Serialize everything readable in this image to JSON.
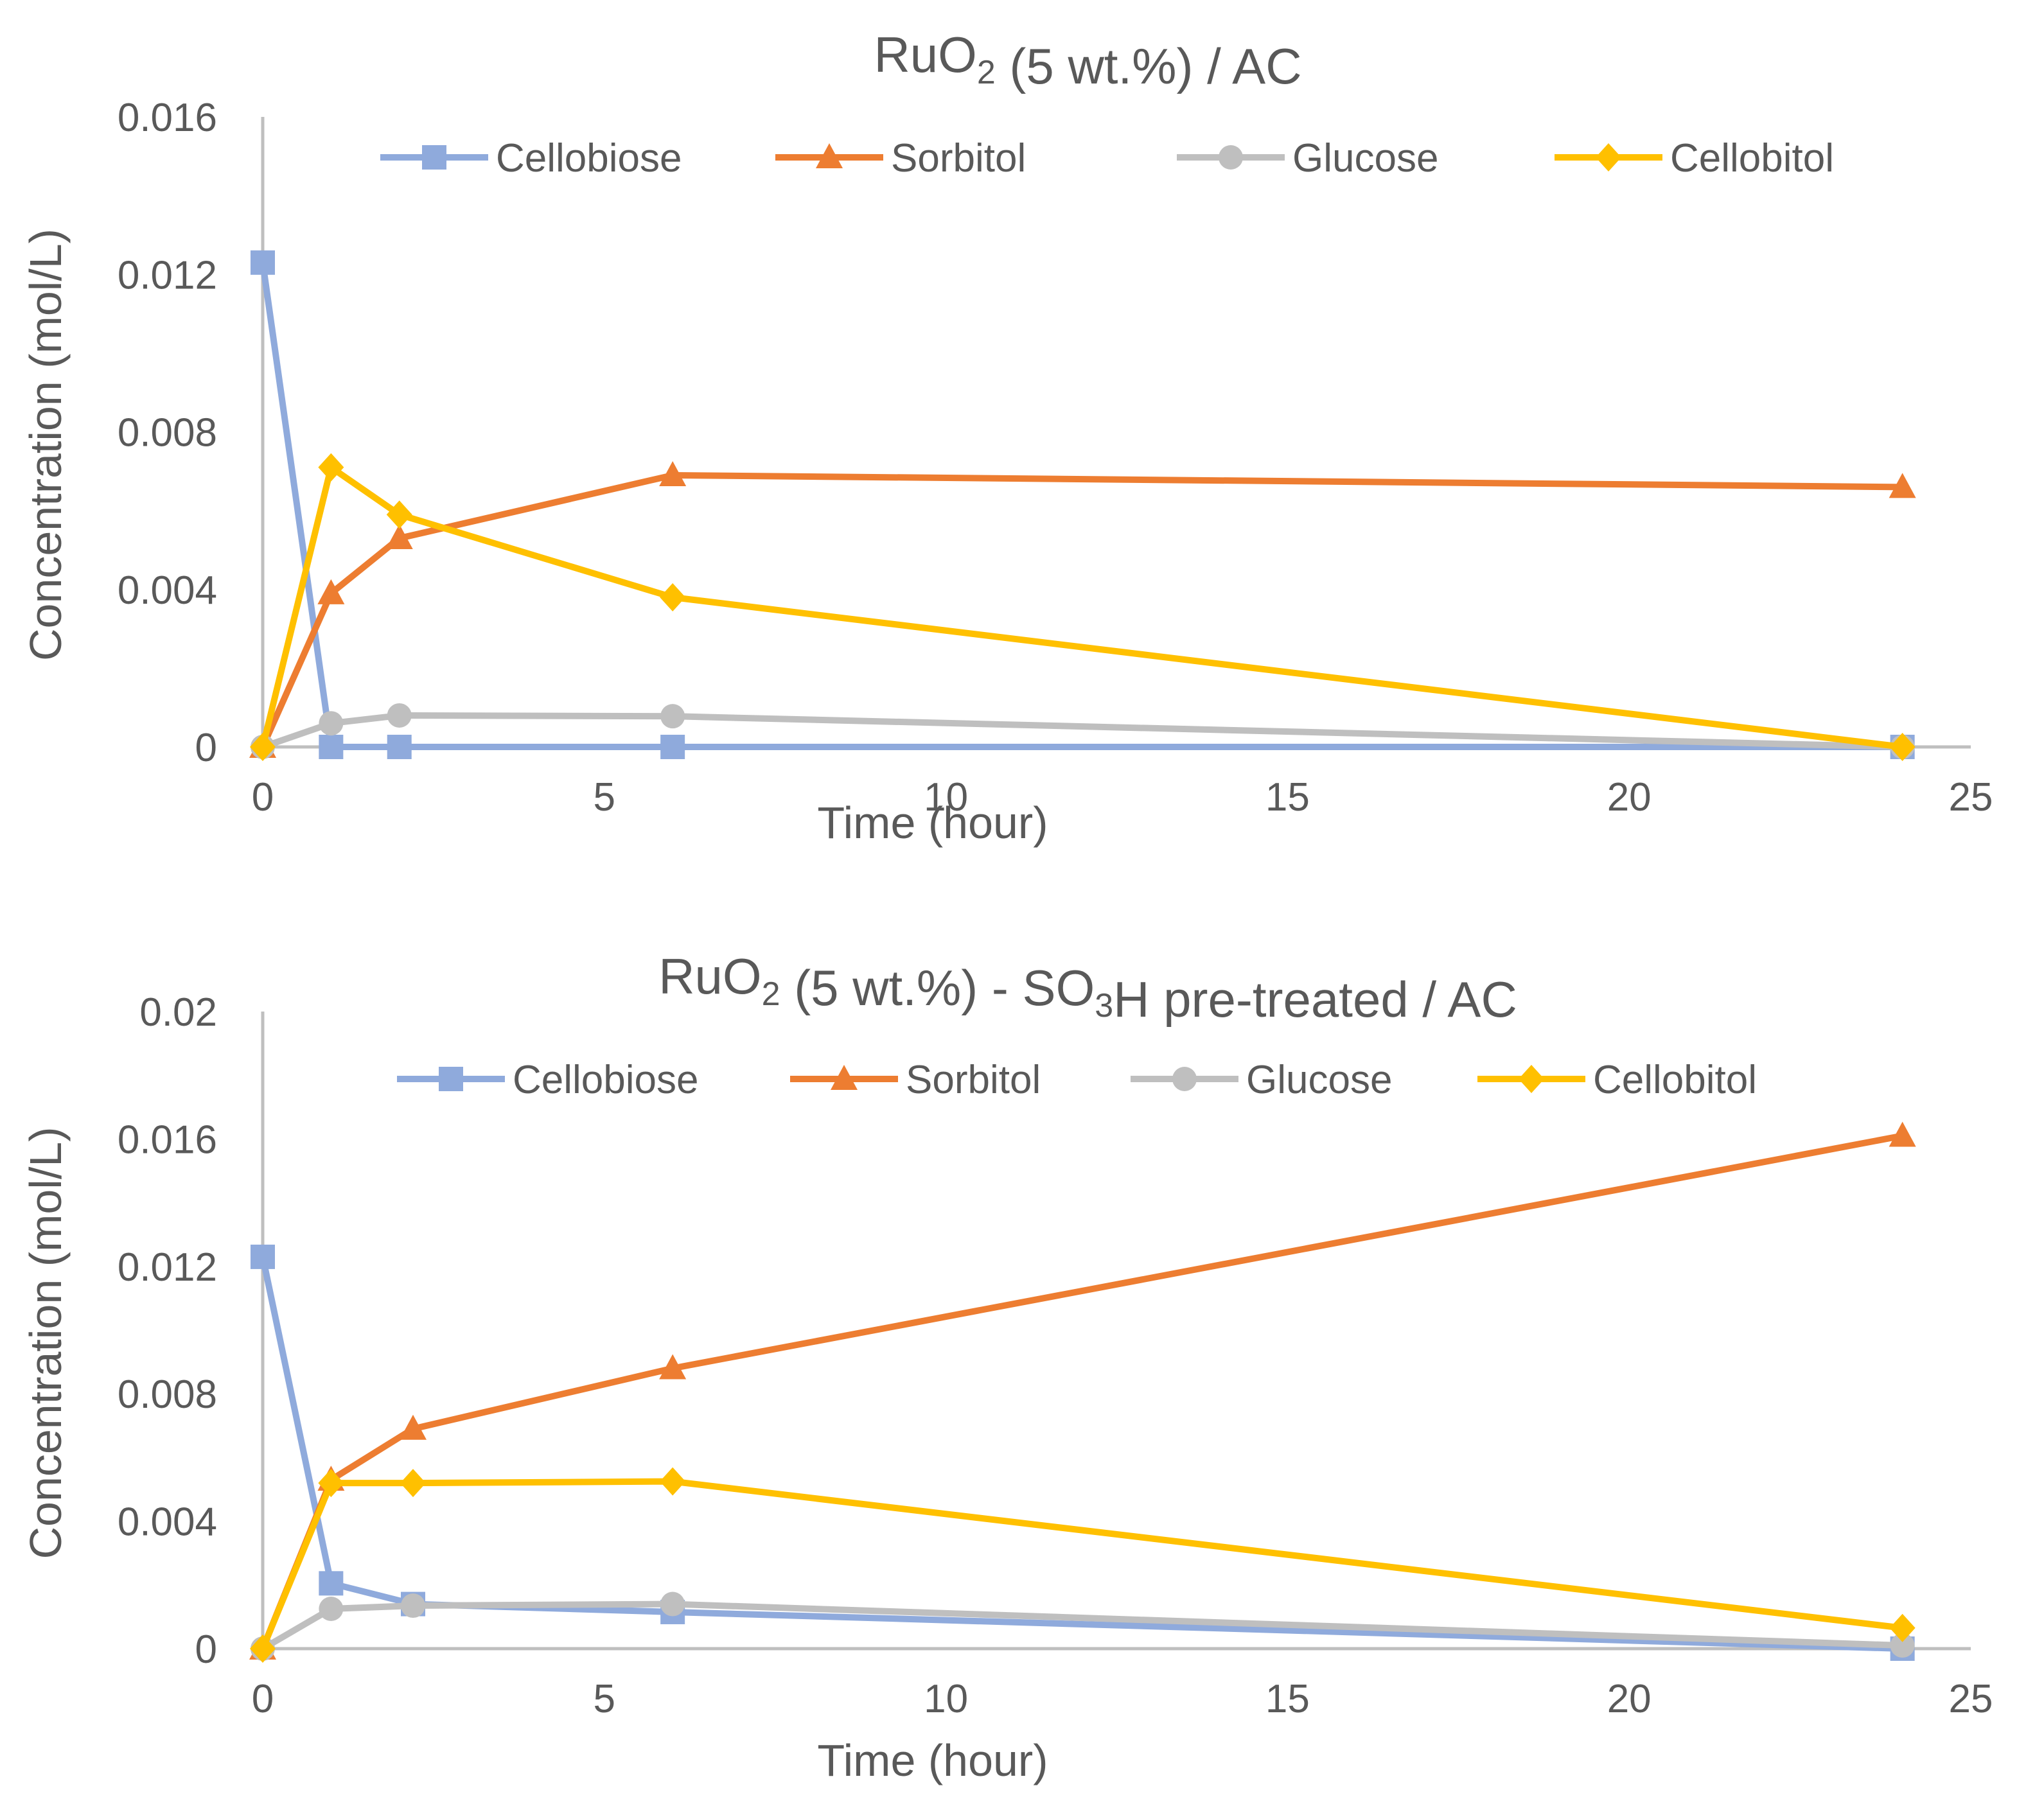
{
  "colors": {
    "cellobiose": "#8faadc",
    "sorbitol": "#ed7d31",
    "glucose": "#bfbfbf",
    "cellobitol": "#ffc000",
    "text": "#595959",
    "axis": "#bfbfbf"
  },
  "chart_data": [
    {
      "type": "scatter",
      "title": {
        "prefix": "RuO",
        "sub1": "2",
        "mid": " (5 wt.%) / AC",
        "sub2": "",
        "suffix": ""
      },
      "xlabel": "Time (hour)",
      "ylabel": "Concentration (mol/L)",
      "xlim": [
        0,
        25
      ],
      "ylim": [
        0,
        0.016
      ],
      "xticks": [
        0,
        5,
        10,
        15,
        20,
        25
      ],
      "xtick_labels": [
        "0",
        "5",
        "10",
        "15",
        "20",
        "25"
      ],
      "yticks": [
        0,
        0.004,
        0.008,
        0.012,
        0.016
      ],
      "ytick_labels": [
        "0",
        "0.004",
        "0.008",
        "0.012",
        "0.016"
      ],
      "legend": "top",
      "series": [
        {
          "name": "Cellobiose",
          "marker": "square",
          "color_key": "cellobiose",
          "x": [
            0,
            1,
            2,
            6,
            24
          ],
          "y": [
            0.0123,
            0.0,
            0.0,
            0.0,
            0.0
          ]
        },
        {
          "name": "Sorbitol",
          "marker": "triangle",
          "color_key": "sorbitol",
          "x": [
            0,
            1,
            2,
            6,
            24
          ],
          "y": [
            0.0,
            0.0039,
            0.0053,
            0.0069,
            0.0066
          ]
        },
        {
          "name": "Glucose",
          "marker": "circle",
          "color_key": "glucose",
          "x": [
            0,
            1,
            2,
            6,
            24
          ],
          "y": [
            0.0,
            0.0006,
            0.0008,
            0.00078,
            0.0
          ]
        },
        {
          "name": "Cellobitol",
          "marker": "diamond",
          "color_key": "cellobitol",
          "x": [
            0,
            1,
            2,
            6,
            24
          ],
          "y": [
            0.0,
            0.0071,
            0.0059,
            0.0038,
            0.0
          ]
        }
      ]
    },
    {
      "type": "scatter",
      "title": {
        "prefix": "RuO",
        "sub1": "2",
        "mid": " (5 wt.%) - SO",
        "sub2": "3",
        "suffix": "H pre-treated / AC"
      },
      "xlabel": "Time (hour)",
      "ylabel": "Concentration (mol/L)",
      "xlim": [
        0,
        25
      ],
      "ylim": [
        0,
        0.02
      ],
      "xticks": [
        0,
        5,
        10,
        15,
        20,
        25
      ],
      "xtick_labels": [
        "0",
        "5",
        "10",
        "15",
        "20",
        "25"
      ],
      "yticks": [
        0,
        0.004,
        0.008,
        0.012,
        0.016,
        0.02
      ],
      "ytick_labels": [
        "0",
        "0.004",
        "0.008",
        "0.012",
        "0.016",
        "0.02"
      ],
      "legend": "top",
      "series": [
        {
          "name": "Cellobiose",
          "marker": "square",
          "color_key": "cellobiose",
          "x": [
            0,
            1,
            2.2,
            6,
            24
          ],
          "y": [
            0.0123,
            0.00205,
            0.0014,
            0.00115,
            0.0
          ]
        },
        {
          "name": "Sorbitol",
          "marker": "triangle",
          "color_key": "sorbitol",
          "x": [
            0,
            1,
            2.2,
            6,
            24
          ],
          "y": [
            0.0,
            0.0053,
            0.0069,
            0.0088,
            0.0161
          ]
        },
        {
          "name": "Glucose",
          "marker": "circle",
          "color_key": "glucose",
          "x": [
            0,
            1,
            2.2,
            6,
            24
          ],
          "y": [
            0.0,
            0.00125,
            0.00135,
            0.0014,
            0.0001
          ]
        },
        {
          "name": "Cellobitol",
          "marker": "diamond",
          "color_key": "cellobitol",
          "x": [
            0,
            1,
            2.2,
            6,
            24
          ],
          "y": [
            0.0,
            0.0052,
            0.0052,
            0.00525,
            0.00065
          ]
        }
      ]
    }
  ]
}
